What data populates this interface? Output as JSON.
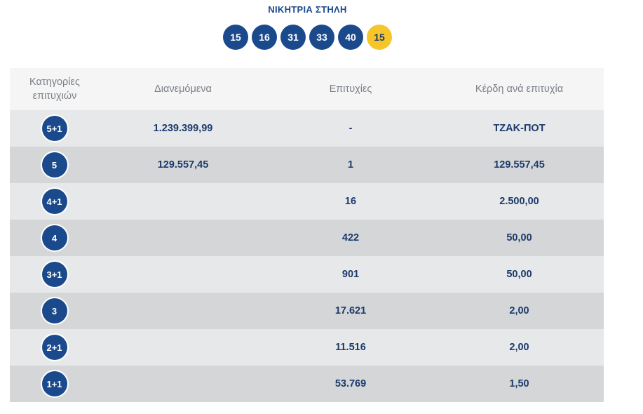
{
  "title": "ΝΙΚΗΤΡΙΑ ΣΤΗΛΗ",
  "numbers": [
    "15",
    "16",
    "31",
    "33",
    "40"
  ],
  "joker": "15",
  "colors": {
    "ball_blue": "#1b4a8c",
    "joker_yellow": "#f5c52a",
    "row_light": "#e7e8ea",
    "row_dark": "#d5d6d8",
    "header_bg": "#f5f5f5"
  },
  "table": {
    "headers": {
      "category_line1": "Κατηγορίες",
      "category_line2": "επιτυχιών",
      "distributed": "Διανεμόμενα",
      "winners": "Επιτυχίες",
      "prize": "Κέρδη ανά επιτυχία"
    },
    "rows": [
      {
        "category": "5+1",
        "distributed": "1.239.399,99",
        "winners": "-",
        "prize": "ΤΖΑΚ-ΠΟΤ"
      },
      {
        "category": "5",
        "distributed": "129.557,45",
        "winners": "1",
        "prize": "129.557,45"
      },
      {
        "category": "4+1",
        "distributed": "",
        "winners": "16",
        "prize": "2.500,00"
      },
      {
        "category": "4",
        "distributed": "",
        "winners": "422",
        "prize": "50,00"
      },
      {
        "category": "3+1",
        "distributed": "",
        "winners": "901",
        "prize": "50,00"
      },
      {
        "category": "3",
        "distributed": "",
        "winners": "17.621",
        "prize": "2,00"
      },
      {
        "category": "2+1",
        "distributed": "",
        "winners": "11.516",
        "prize": "2,00"
      },
      {
        "category": "1+1",
        "distributed": "",
        "winners": "53.769",
        "prize": "1,50"
      }
    ]
  }
}
